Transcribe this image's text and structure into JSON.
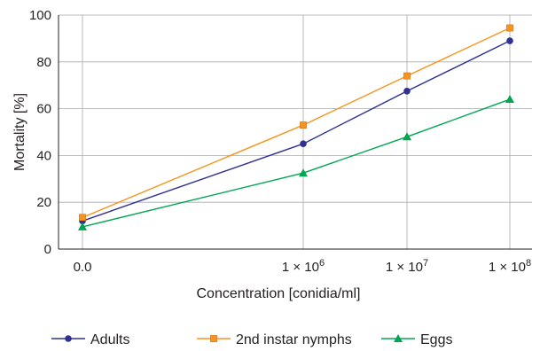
{
  "chart_data": {
    "type": "line",
    "xlabel": "Concentration [conidia/ml]",
    "ylabel": "Mortality [%]",
    "ylim": [
      0,
      100
    ],
    "yticks": [
      "0",
      "20",
      "40",
      "60",
      "80",
      "100"
    ],
    "categories": [
      "0.0",
      "1 × 10^6",
      "1 × 10^7",
      "1 × 10^8"
    ],
    "xtick_labels": [
      {
        "base": "0.0",
        "exp": ""
      },
      {
        "base": "1 × 10",
        "exp": "6"
      },
      {
        "base": "1 × 10",
        "exp": "7"
      },
      {
        "base": "1 × 10",
        "exp": "8"
      }
    ],
    "grid": true,
    "legend_position": "bottom",
    "series": [
      {
        "name": "Adults",
        "values": [
          12,
          45,
          67.5,
          89
        ],
        "color": "#2e3192",
        "marker": "circle"
      },
      {
        "name": "2nd instar nymphs",
        "values": [
          13.5,
          53,
          74,
          94.5
        ],
        "color": "#f7941d",
        "marker": "square"
      },
      {
        "name": "Eggs",
        "values": [
          9.5,
          32.5,
          48,
          64
        ],
        "color": "#00a651",
        "marker": "triangle"
      }
    ]
  }
}
